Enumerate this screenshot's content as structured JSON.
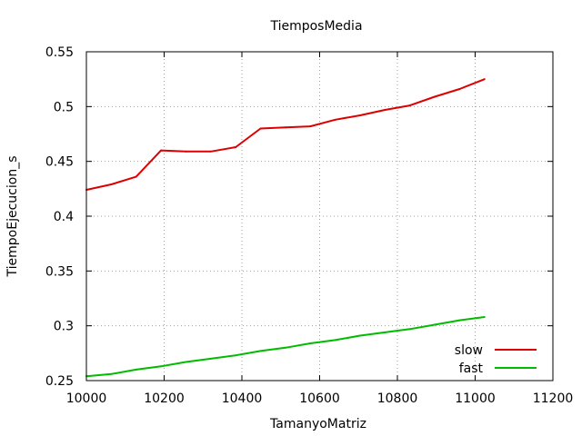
{
  "chart_data": {
    "type": "line",
    "title": "TiemposMedia",
    "xlabel": "TamanyoMatriz",
    "ylabel": "TiempoEjecucion_s",
    "xlim": [
      10000,
      11200
    ],
    "ylim": [
      0.25,
      0.55
    ],
    "xticks": [
      10000,
      10200,
      10400,
      10600,
      10800,
      11000,
      11200
    ],
    "xtick_labels": [
      "10000",
      "10200",
      "10400",
      "10600",
      "10800",
      "11000",
      "11200"
    ],
    "yticks": [
      0.25,
      0.3,
      0.35,
      0.4,
      0.45,
      0.5,
      0.55
    ],
    "ytick_labels": [
      "0.25",
      "0.3",
      "0.35",
      "0.4",
      "0.45",
      "0.5",
      "0.55"
    ],
    "grid": true,
    "legend_position": "bottom-right",
    "x": [
      10000,
      10064,
      10128,
      10192,
      10256,
      10320,
      10384,
      10448,
      10512,
      10576,
      10640,
      10704,
      10768,
      10832,
      10896,
      10960,
      11024
    ],
    "series": [
      {
        "name": "slow",
        "color": "#dd0000",
        "values": [
          0.424,
          0.429,
          0.436,
          0.46,
          0.459,
          0.459,
          0.463,
          0.48,
          0.481,
          0.482,
          0.488,
          0.492,
          0.497,
          0.501,
          0.509,
          0.516,
          0.525
        ]
      },
      {
        "name": "fast",
        "color": "#00bb00",
        "values": [
          0.254,
          0.256,
          0.26,
          0.263,
          0.267,
          0.27,
          0.273,
          0.277,
          0.28,
          0.284,
          0.287,
          0.291,
          0.294,
          0.297,
          0.301,
          0.305,
          0.308
        ]
      }
    ]
  }
}
